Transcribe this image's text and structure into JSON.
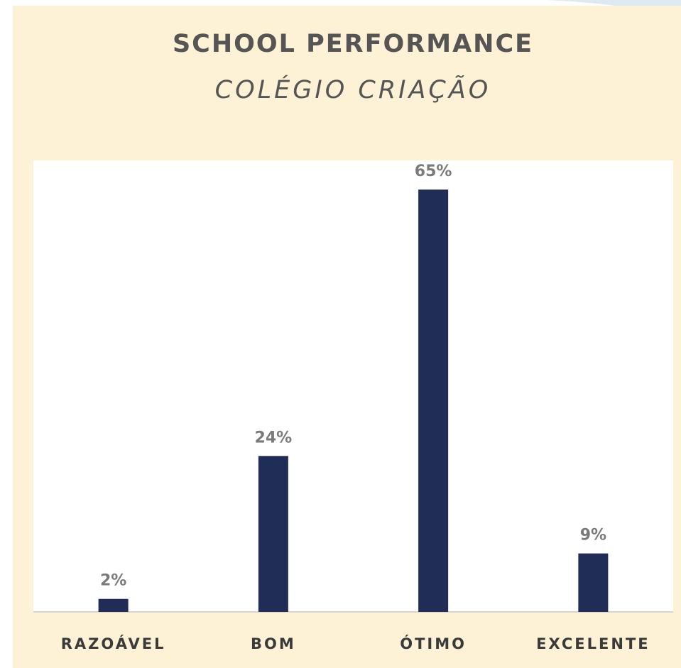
{
  "chart_data": {
    "type": "bar",
    "title": "SCHOOL PERFORMANCE",
    "subtitle": "COLÉGIO CRIAÇÃO",
    "categories": [
      "RAZOÁVEL",
      "BOM",
      "ÓTIMO",
      "EXCELENTE"
    ],
    "values": [
      2,
      24,
      65,
      9
    ],
    "value_labels": [
      "2%",
      "24%",
      "65%",
      "9%"
    ],
    "color": "#1f2d57"
  }
}
